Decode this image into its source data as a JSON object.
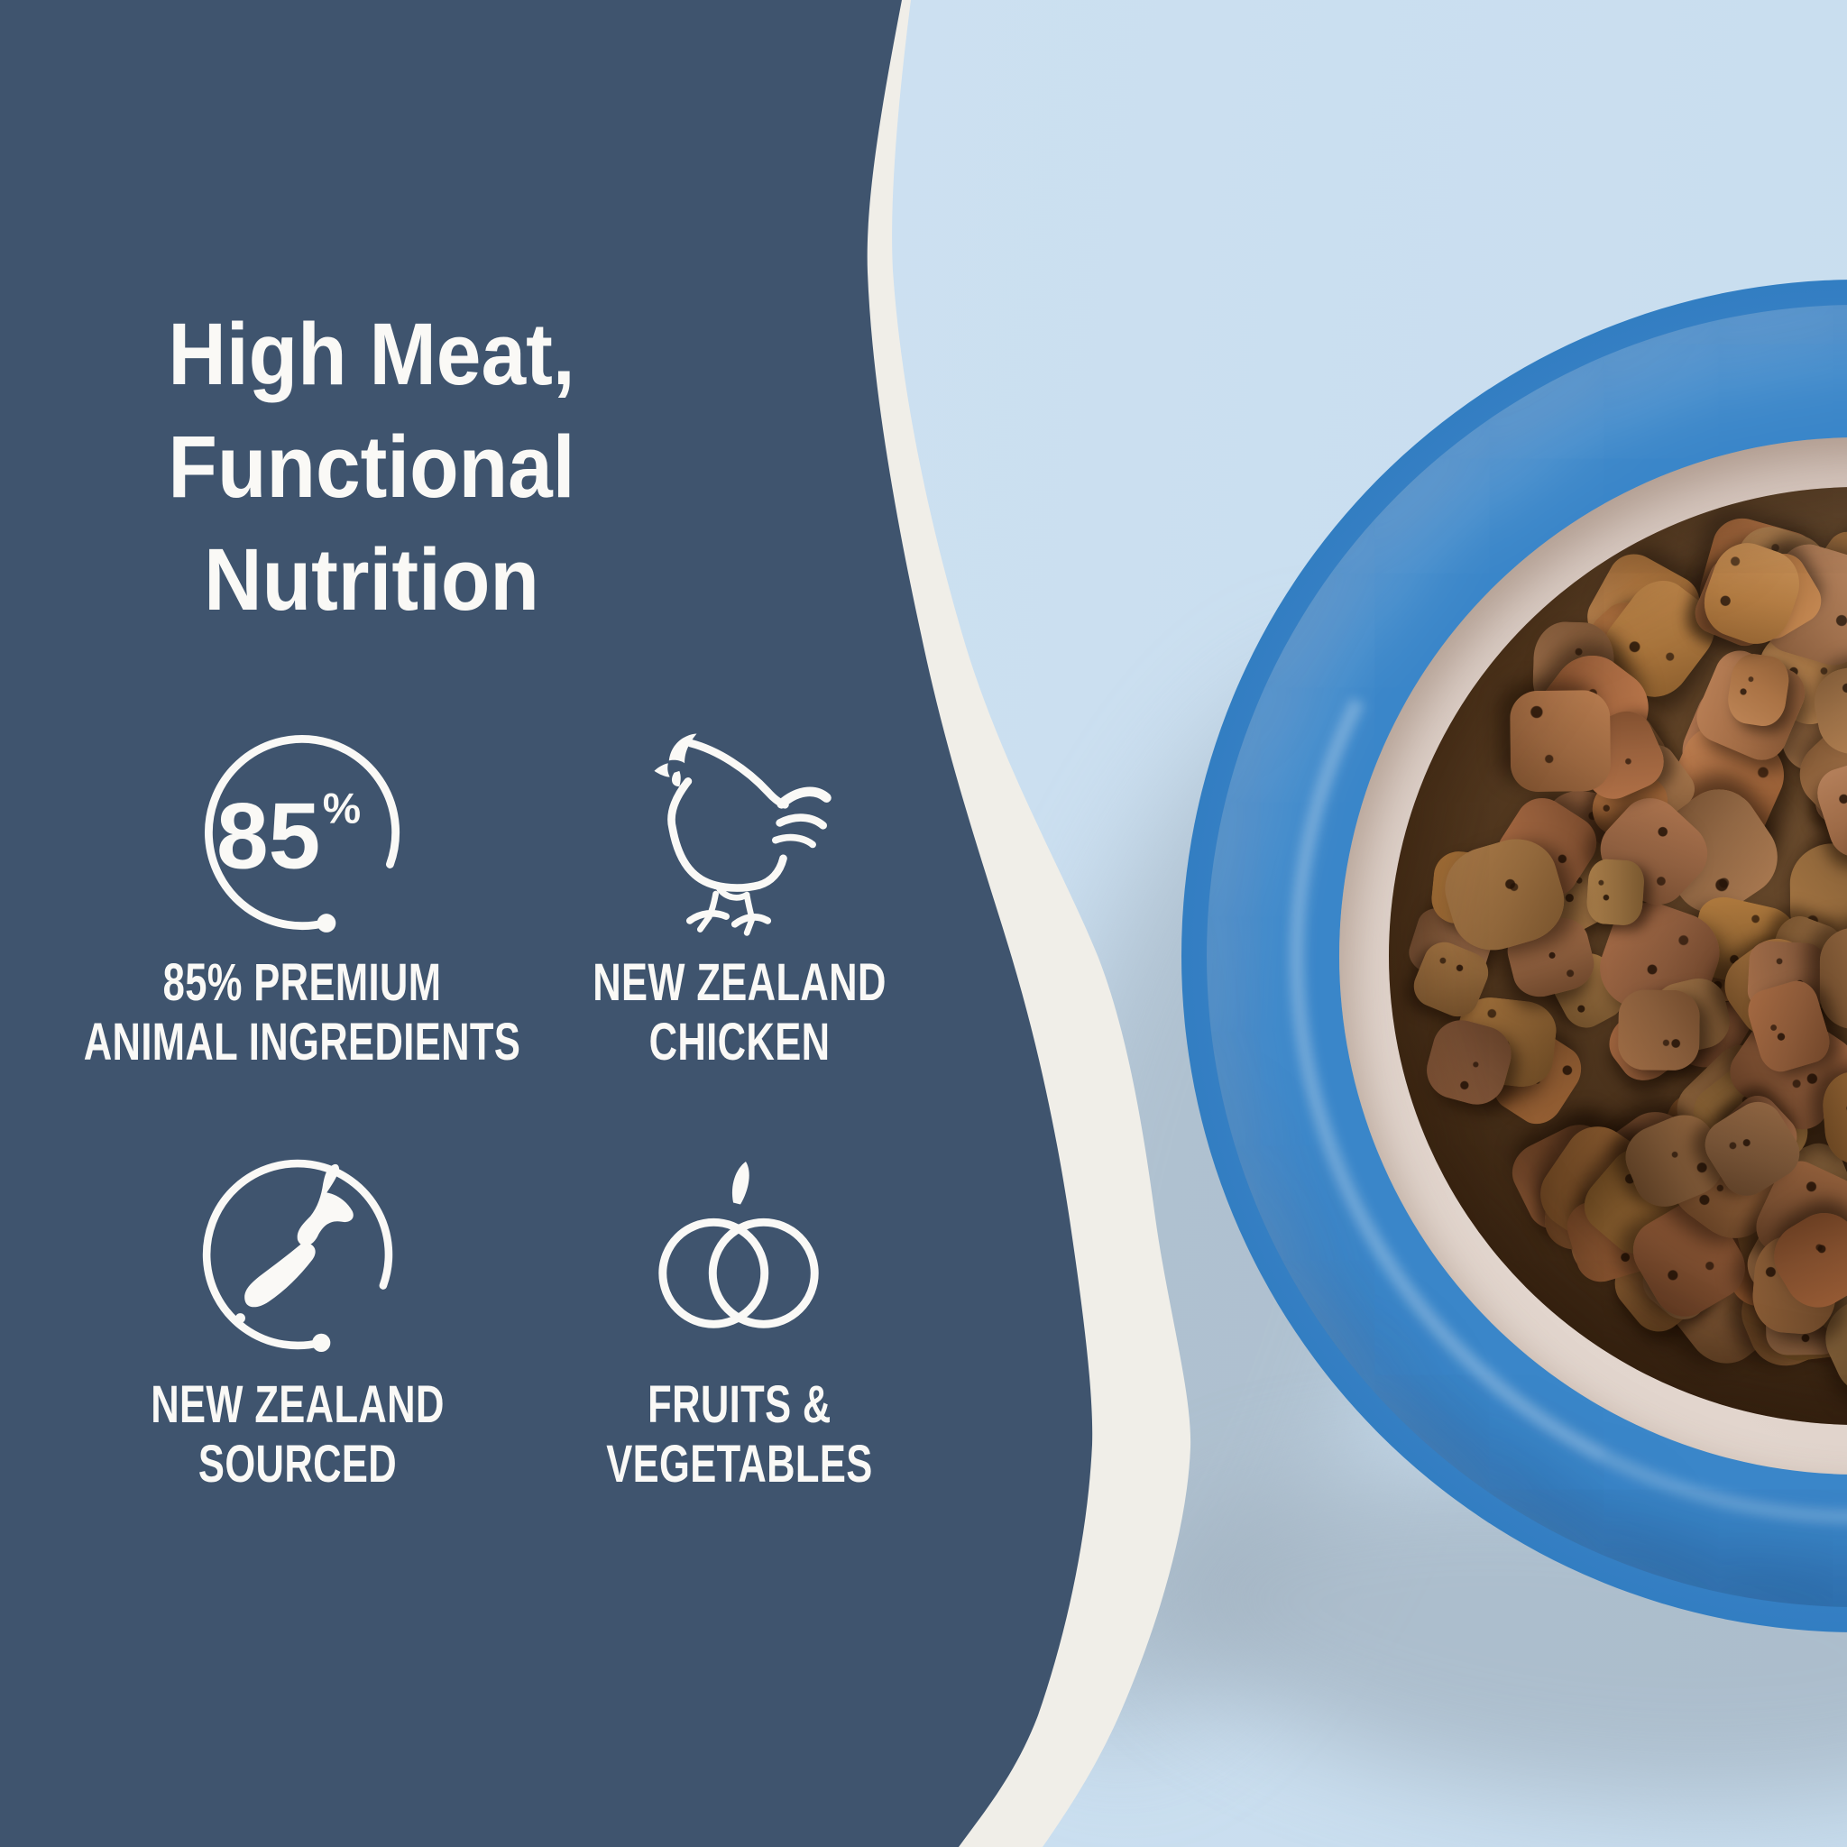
{
  "panel": {
    "title": {
      "line1": "High Meat,",
      "line2": "Functional",
      "line3": "Nutrition"
    },
    "features": [
      {
        "icon": "85-percent-badge-icon",
        "badge_value": "85",
        "badge_unit": "%",
        "label_line1": "85% PREMIUM",
        "label_line2": "ANIMAL INGREDIENTS"
      },
      {
        "icon": "chicken-icon",
        "label_line1": "NEW ZEALAND",
        "label_line2": "CHICKEN"
      },
      {
        "icon": "new-zealand-map-icon",
        "label_line1": "NEW ZEALAND",
        "label_line2": "SOURCED"
      },
      {
        "icon": "pumpkin-icon",
        "label_line1": "FRUITS &",
        "label_line2": "VEGETABLES"
      }
    ]
  },
  "photo": {
    "subject": "Blue ceramic pet bowl filled with brown kibble on a light blue background"
  },
  "colors": {
    "panel_navy": "#3F546E",
    "background_blue": "#CCE0F1",
    "divider_cream": "#F0EEE8",
    "bowl_blue": "#2F7CC1",
    "bowl_blue_deep": "#1D619F",
    "bowl_inner_cream": "#D9CBC3",
    "kibble_brown": "#7A5836",
    "shadow_gray": "#9FAFBD",
    "text_white": "#FAF9F6"
  }
}
